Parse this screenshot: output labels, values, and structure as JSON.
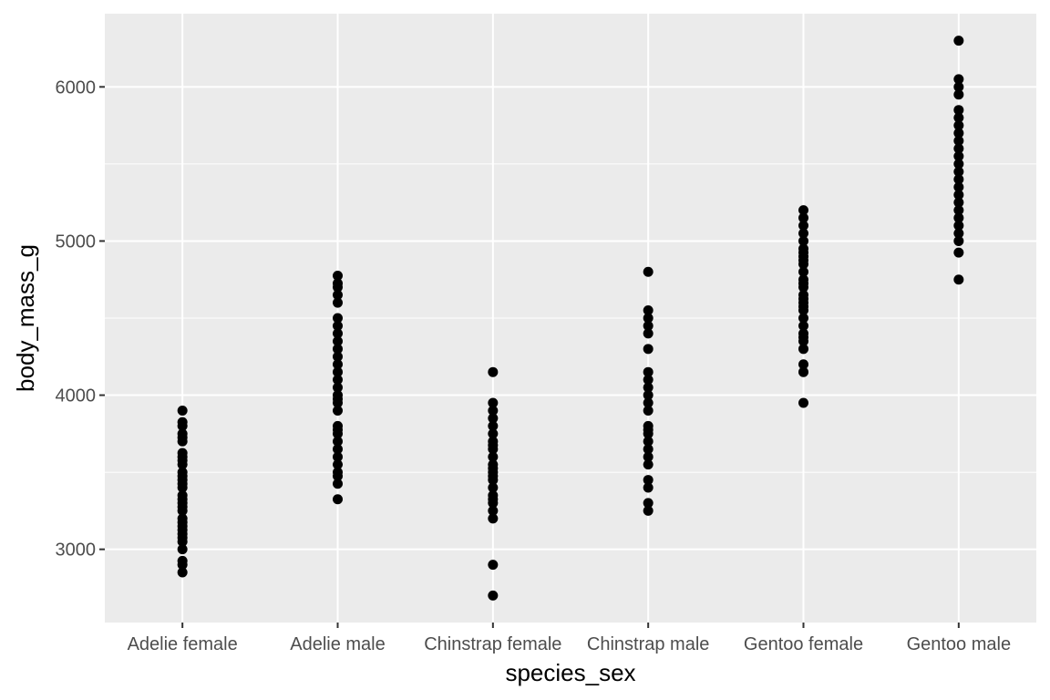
{
  "chart_data": {
    "type": "scatter",
    "title": "",
    "xlabel": "species_sex",
    "ylabel": "body_mass_g",
    "categories": [
      "Adelie female",
      "Adelie male",
      "Chinstrap female",
      "Chinstrap male",
      "Gentoo female",
      "Gentoo male"
    ],
    "y_ticks": [
      3000,
      4000,
      5000,
      6000
    ],
    "ylim": [
      2525,
      6475
    ],
    "grid": true,
    "legend": "none",
    "colors": {
      "panel": "#ebebeb",
      "grid": "#ffffff",
      "point": "#000000",
      "tick_text": "#4d4d4d",
      "axis_title": "#000000",
      "tick_mark": "#333333"
    },
    "points": [
      {
        "category": "Adelie female",
        "values": [
          2850,
          2900,
          2925,
          3000,
          3050,
          3075,
          3100,
          3125,
          3150,
          3175,
          3200,
          3250,
          3275,
          3300,
          3325,
          3350,
          3400,
          3425,
          3450,
          3475,
          3500,
          3550,
          3575,
          3600,
          3625,
          3700,
          3725,
          3750,
          3800,
          3825,
          3900
        ]
      },
      {
        "category": "Adelie male",
        "values": [
          3325,
          3425,
          3475,
          3500,
          3550,
          3600,
          3650,
          3700,
          3750,
          3775,
          3800,
          3900,
          3950,
          3975,
          4000,
          4050,
          4100,
          4150,
          4200,
          4250,
          4300,
          4350,
          4400,
          4450,
          4500,
          4600,
          4650,
          4700,
          4725,
          4775
        ]
      },
      {
        "category": "Chinstrap female",
        "values": [
          2700,
          2900,
          3200,
          3250,
          3300,
          3325,
          3350,
          3400,
          3450,
          3475,
          3500,
          3525,
          3550,
          3600,
          3650,
          3675,
          3700,
          3750,
          3800,
          3850,
          3900,
          3950,
          4150
        ]
      },
      {
        "category": "Chinstrap male",
        "values": [
          3250,
          3300,
          3400,
          3450,
          3550,
          3600,
          3650,
          3700,
          3750,
          3775,
          3800,
          3900,
          3950,
          4000,
          4050,
          4100,
          4150,
          4300,
          4400,
          4450,
          4500,
          4550,
          4800
        ]
      },
      {
        "category": "Gentoo female",
        "values": [
          3950,
          4150,
          4200,
          4300,
          4350,
          4375,
          4400,
          4450,
          4500,
          4550,
          4575,
          4600,
          4625,
          4650,
          4700,
          4725,
          4750,
          4800,
          4850,
          4875,
          4900,
          4925,
          4950,
          5000,
          5050,
          5100,
          5150,
          5200
        ]
      },
      {
        "category": "Gentoo male",
        "values": [
          4750,
          4925,
          5000,
          5050,
          5100,
          5150,
          5200,
          5250,
          5300,
          5350,
          5400,
          5450,
          5500,
          5550,
          5600,
          5650,
          5700,
          5750,
          5800,
          5850,
          5950,
          6000,
          6050,
          6300
        ]
      }
    ]
  }
}
